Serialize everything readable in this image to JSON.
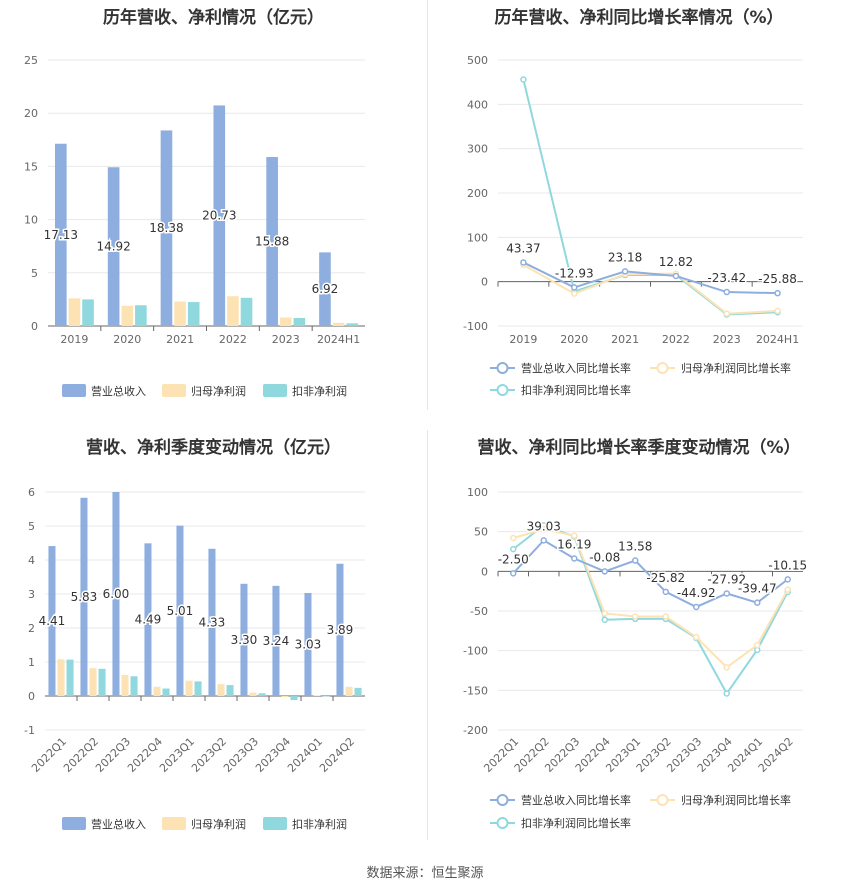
{
  "source": "数据来源：恒生聚源",
  "chart_data": [
    {
      "type": "bar",
      "title": "历年营收、净利情况（亿元）",
      "categories": [
        "2019",
        "2020",
        "2021",
        "2022",
        "2023",
        "2024H1"
      ],
      "ylim": [
        0,
        25
      ],
      "yticks": [
        0,
        5,
        10,
        15,
        20,
        25
      ],
      "series": [
        {
          "name": "营业总收入",
          "color": "#8eaedf",
          "values": [
            17.13,
            14.92,
            18.38,
            20.73,
            15.88,
            6.92
          ],
          "labels": [
            "17.13",
            "14.92",
            "18.38",
            "20.73",
            "15.88",
            "6.92"
          ]
        },
        {
          "name": "归母净利润",
          "color": "#fde3b3",
          "values": [
            2.6,
            1.9,
            2.3,
            2.8,
            0.8,
            0.3
          ]
        },
        {
          "name": "扣非净利润",
          "color": "#8fd9de",
          "values": [
            2.5,
            1.95,
            2.25,
            2.65,
            0.75,
            0.25
          ]
        }
      ],
      "legend": "bottom"
    },
    {
      "type": "line",
      "title": "历年营收、净利同比增长率情况（%）",
      "categories": [
        "2019",
        "2020",
        "2021",
        "2022",
        "2023",
        "2024H1"
      ],
      "ylim": [
        -100,
        500
      ],
      "yticks": [
        -100,
        0,
        100,
        200,
        300,
        400,
        500
      ],
      "series": [
        {
          "name": "营业总收入同比增长率",
          "color": "#8eaedf",
          "values": [
            43.37,
            -12.93,
            23.18,
            12.82,
            -23.42,
            -25.88
          ],
          "labels": [
            "43.37",
            "-12.93",
            "23.18",
            "12.82",
            "-23.42",
            "-25.88"
          ]
        },
        {
          "name": "归母净利润同比增长率",
          "color": "#fde3b3",
          "values": [
            38,
            -27,
            17,
            18,
            -72,
            -66
          ]
        },
        {
          "name": "扣非净利润同比增长率",
          "color": "#8fd9de",
          "values": [
            456,
            -22,
            15,
            15,
            -74,
            -69
          ]
        }
      ],
      "legend": "bottom"
    },
    {
      "type": "bar",
      "title": "营收、净利季度变动情况（亿元）",
      "categories": [
        "2022Q1",
        "2022Q2",
        "2022Q3",
        "2022Q4",
        "2023Q1",
        "2023Q2",
        "2023Q3",
        "2023Q4",
        "2024Q1",
        "2024Q2"
      ],
      "ylim": [
        -1,
        6
      ],
      "yticks": [
        -1,
        0,
        1,
        2,
        3,
        4,
        5,
        6
      ],
      "series": [
        {
          "name": "营业总收入",
          "color": "#8eaedf",
          "values": [
            4.41,
            5.83,
            6.0,
            4.49,
            5.01,
            4.33,
            3.3,
            3.24,
            3.03,
            3.89
          ],
          "labels": [
            "4.41",
            "5.83",
            "6.00",
            "4.49",
            "5.01",
            "4.33",
            "3.30",
            "3.24",
            "3.03",
            "3.89"
          ]
        },
        {
          "name": "归母净利润",
          "color": "#fde3b3",
          "values": [
            1.08,
            0.82,
            0.62,
            0.27,
            0.45,
            0.35,
            0.1,
            -0.03,
            0.02,
            0.27
          ]
        },
        {
          "name": "扣非净利润",
          "color": "#8fd9de",
          "values": [
            1.07,
            0.8,
            0.58,
            0.22,
            0.43,
            0.32,
            0.08,
            -0.12,
            0.0,
            0.24
          ]
        }
      ],
      "legend": "bottom"
    },
    {
      "type": "line",
      "title": "营收、净利同比增长率季度变动情况（%）",
      "categories": [
        "2022Q1",
        "2022Q2",
        "2022Q3",
        "2022Q4",
        "2023Q1",
        "2023Q2",
        "2023Q3",
        "2023Q4",
        "2024Q1",
        "2024Q2"
      ],
      "ylim": [
        -200,
        100
      ],
      "yticks": [
        -200,
        -150,
        -100,
        -50,
        0,
        50,
        100
      ],
      "series": [
        {
          "name": "营业总收入同比增长率",
          "color": "#8eaedf",
          "values": [
            -2.5,
            39.03,
            16.19,
            -0.08,
            13.58,
            -25.82,
            -44.92,
            -27.92,
            -39.47,
            -10.15
          ],
          "labels": [
            "-2.50",
            "39.03",
            "16.19",
            "-0.08",
            "13.58",
            "-25.82",
            "-44.92",
            "-27.92",
            "-39.47",
            "-10.15"
          ]
        },
        {
          "name": "归母净利润同比增长率",
          "color": "#fde3b3",
          "values": [
            42,
            53,
            45,
            -53,
            -57,
            -57,
            -83,
            -121,
            -93,
            -23
          ]
        },
        {
          "name": "扣非净利润同比增长率",
          "color": "#8fd9de",
          "values": [
            28,
            58,
            44,
            -61,
            -60,
            -60,
            -84,
            -154,
            -99,
            -26
          ]
        }
      ],
      "legend": "bottom"
    }
  ]
}
